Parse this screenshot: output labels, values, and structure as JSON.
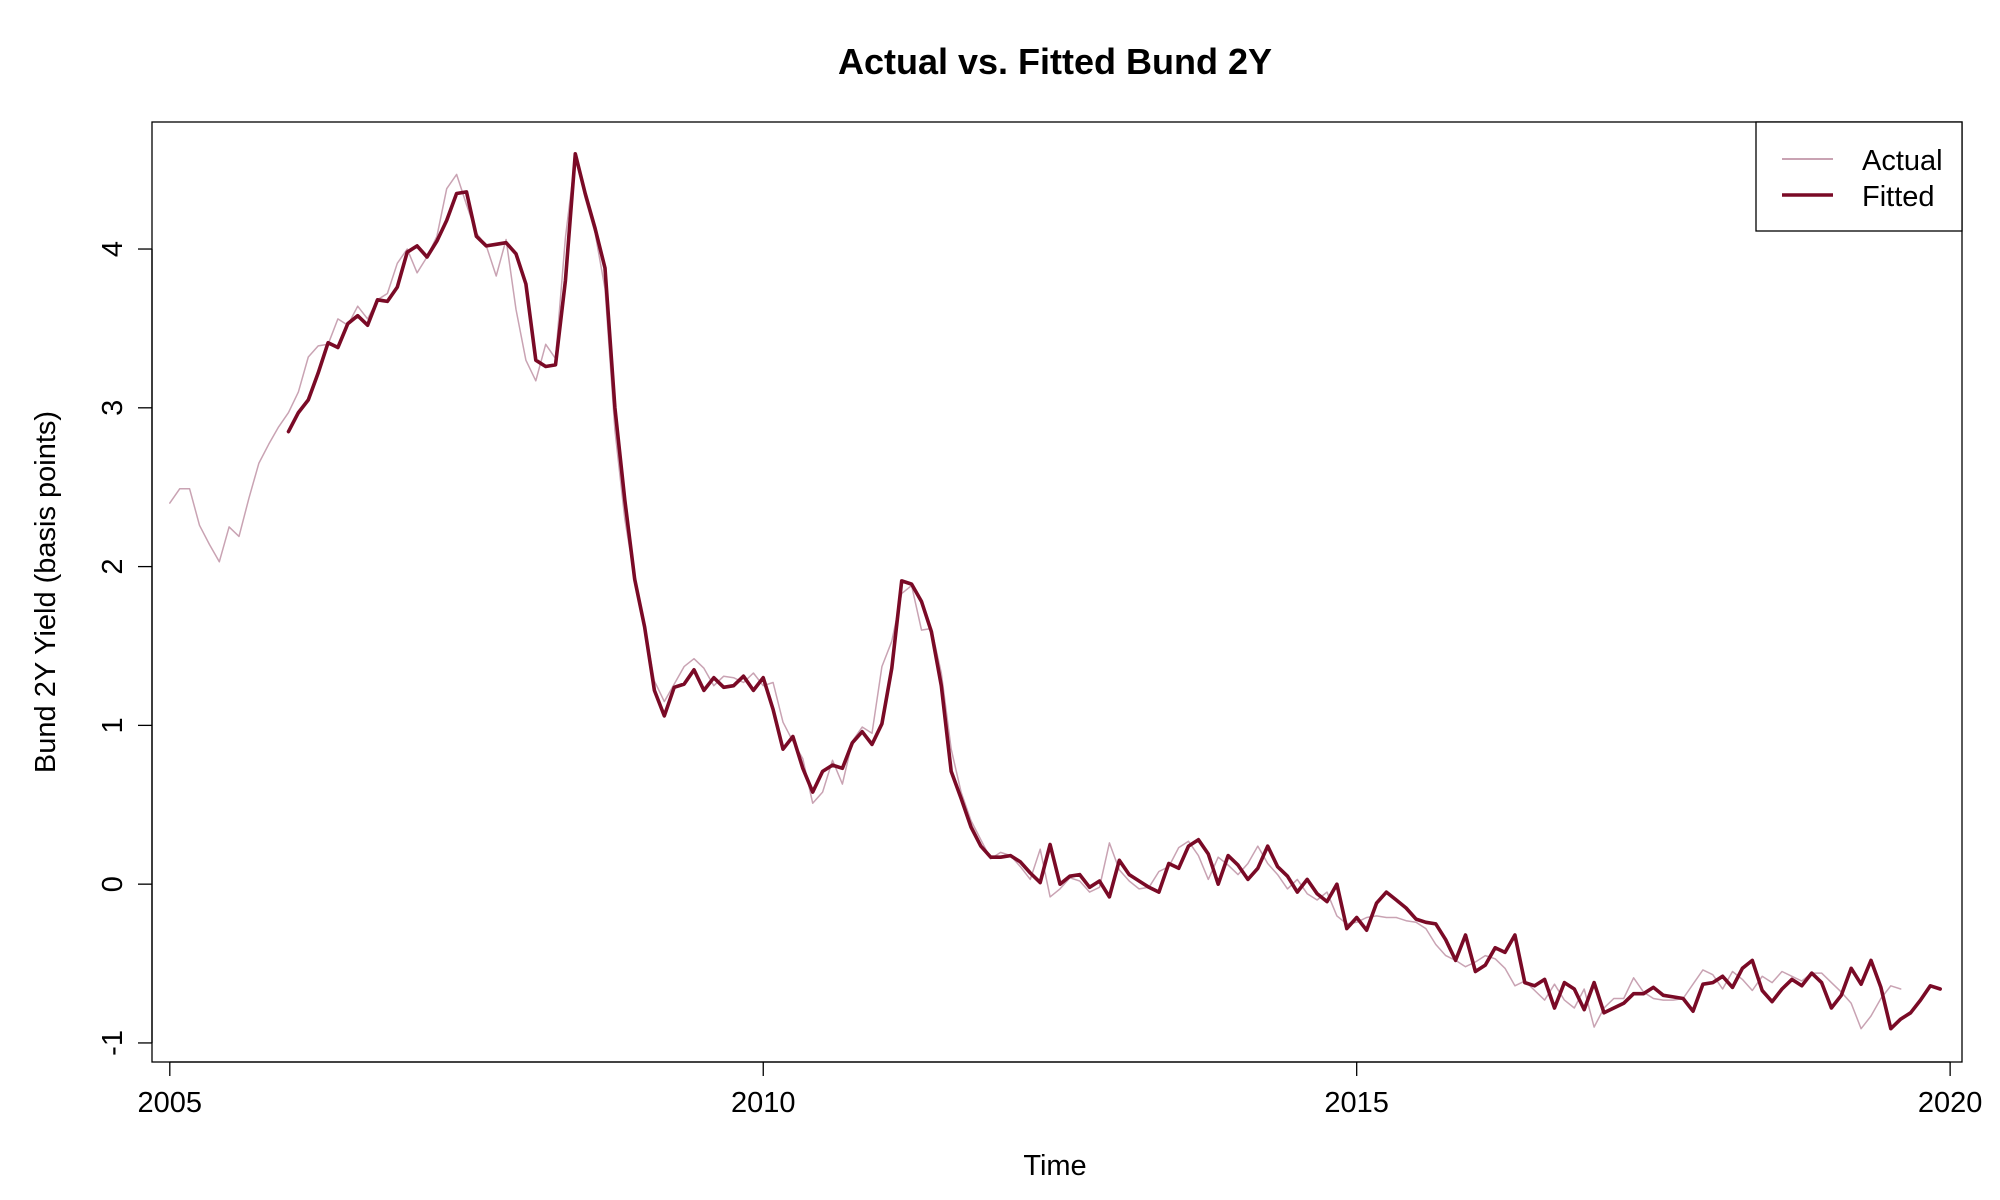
{
  "chart_data": {
    "type": "line",
    "title": "Actual vs. Fitted Bund 2Y",
    "xlabel": "Time",
    "ylabel": "Bund 2Y Yield (basis points)",
    "xlim": [
      2004.85,
      2020.1
    ],
    "ylim": [
      -1.12,
      4.8
    ],
    "x_ticks": [
      2005,
      2010,
      2015,
      2020
    ],
    "x_tick_labels": [
      "2005",
      "2010",
      "2015",
      "2020"
    ],
    "y_ticks": [
      -1,
      0,
      1,
      2,
      3,
      4
    ],
    "y_tick_labels": [
      "-1",
      "0",
      "1",
      "2",
      "3",
      "4"
    ],
    "grid": false,
    "legend": {
      "position": "top-right",
      "entries": [
        {
          "label": "Actual",
          "color": "#c9a3b3"
        },
        {
          "label": "Fitted",
          "color": "#7a0a26"
        }
      ]
    },
    "series": [
      {
        "name": "Actual",
        "color": "#c9a3b3",
        "line_style": "thin",
        "x_start": 2005.0,
        "x_step_months": 1,
        "values": [
          2.4,
          2.49,
          2.49,
          2.26,
          2.14,
          2.03,
          2.25,
          2.19,
          2.43,
          2.65,
          2.77,
          2.88,
          2.97,
          3.1,
          3.32,
          3.39,
          3.4,
          3.56,
          3.52,
          3.64,
          3.56,
          3.68,
          3.72,
          3.91,
          4.0,
          3.85,
          3.95,
          4.08,
          4.38,
          4.47,
          4.28,
          4.1,
          4.02,
          3.83,
          4.06,
          3.62,
          3.3,
          3.17,
          3.4,
          3.31,
          4.07,
          4.58,
          4.32,
          4.1,
          3.75,
          2.86,
          2.3,
          1.92,
          1.63,
          1.28,
          1.15,
          1.26,
          1.37,
          1.42,
          1.36,
          1.25,
          1.31,
          1.3,
          1.27,
          1.33,
          1.25,
          1.27,
          1.02,
          0.9,
          0.79,
          0.51,
          0.58,
          0.78,
          0.63,
          0.9,
          0.99,
          0.95,
          1.37,
          1.53,
          1.83,
          1.88,
          1.6,
          1.61,
          1.33,
          0.85,
          0.58,
          0.4,
          0.28,
          0.16,
          0.2,
          0.18,
          0.11,
          0.03,
          0.22,
          -0.08,
          -0.03,
          0.04,
          0.02,
          -0.05,
          -0.02,
          0.26,
          0.09,
          0.02,
          -0.03,
          -0.02,
          0.08,
          0.11,
          0.23,
          0.27,
          0.18,
          0.03,
          0.17,
          0.12,
          0.06,
          0.13,
          0.24,
          0.13,
          0.06,
          -0.03,
          0.03,
          -0.06,
          -0.1,
          -0.05,
          -0.2,
          -0.25,
          -0.24,
          -0.21,
          -0.2,
          -0.21,
          -0.21,
          -0.23,
          -0.24,
          -0.28,
          -0.38,
          -0.45,
          -0.48,
          -0.52,
          -0.49,
          -0.45,
          -0.47,
          -0.53,
          -0.64,
          -0.61,
          -0.67,
          -0.73,
          -0.63,
          -0.73,
          -0.78,
          -0.66,
          -0.9,
          -0.78,
          -0.72,
          -0.72,
          -0.59,
          -0.68,
          -0.72,
          -0.73,
          -0.73,
          -0.72,
          -0.63,
          -0.54,
          -0.57,
          -0.66,
          -0.55,
          -0.6,
          -0.67,
          -0.58,
          -0.62,
          -0.55,
          -0.58,
          -0.61,
          -0.56,
          -0.56,
          -0.62,
          -0.68,
          -0.75,
          -0.91,
          -0.83,
          -0.72,
          -0.64,
          -0.66
        ]
      },
      {
        "name": "Fitted",
        "color": "#7a0a26",
        "line_style": "thick",
        "x_start": 2006.0,
        "x_step_months": 1,
        "values": [
          2.85,
          2.97,
          3.05,
          3.22,
          3.41,
          3.38,
          3.53,
          3.58,
          3.52,
          3.68,
          3.67,
          3.76,
          3.98,
          4.02,
          3.95,
          4.05,
          4.18,
          4.35,
          4.36,
          4.08,
          4.02,
          4.03,
          4.04,
          3.97,
          3.78,
          3.3,
          3.26,
          3.27,
          3.8,
          4.6,
          4.35,
          4.13,
          3.88,
          3.0,
          2.42,
          1.92,
          1.62,
          1.22,
          1.06,
          1.24,
          1.26,
          1.35,
          1.22,
          1.3,
          1.24,
          1.25,
          1.31,
          1.22,
          1.3,
          1.1,
          0.85,
          0.93,
          0.73,
          0.58,
          0.71,
          0.75,
          0.73,
          0.89,
          0.96,
          0.88,
          1.01,
          1.36,
          1.91,
          1.89,
          1.78,
          1.59,
          1.25,
          0.71,
          0.54,
          0.36,
          0.24,
          0.17,
          0.17,
          0.18,
          0.14,
          0.07,
          0.01,
          0.25,
          0.0,
          0.05,
          0.06,
          -0.02,
          0.02,
          -0.08,
          0.15,
          0.06,
          0.02,
          -0.02,
          -0.05,
          0.13,
          0.1,
          0.24,
          0.28,
          0.19,
          0.0,
          0.18,
          0.12,
          0.03,
          0.1,
          0.24,
          0.11,
          0.05,
          -0.05,
          0.03,
          -0.06,
          -0.11,
          0.0,
          -0.28,
          -0.21,
          -0.29,
          -0.12,
          -0.05,
          -0.1,
          -0.15,
          -0.22,
          -0.24,
          -0.25,
          -0.35,
          -0.48,
          -0.32,
          -0.55,
          -0.51,
          -0.4,
          -0.43,
          -0.32,
          -0.62,
          -0.64,
          -0.6,
          -0.78,
          -0.62,
          -0.66,
          -0.79,
          -0.62,
          -0.81,
          -0.78,
          -0.75,
          -0.69,
          -0.69,
          -0.65,
          -0.7,
          -0.71,
          -0.72,
          -0.8,
          -0.63,
          -0.62,
          -0.58,
          -0.65,
          -0.53,
          -0.48,
          -0.67,
          -0.74,
          -0.66,
          -0.6,
          -0.64,
          -0.56,
          -0.62,
          -0.78,
          -0.7,
          -0.53,
          -0.63,
          -0.48,
          -0.65,
          -0.91,
          -0.85,
          -0.81,
          -0.73,
          -0.64,
          -0.66
        ]
      }
    ]
  }
}
